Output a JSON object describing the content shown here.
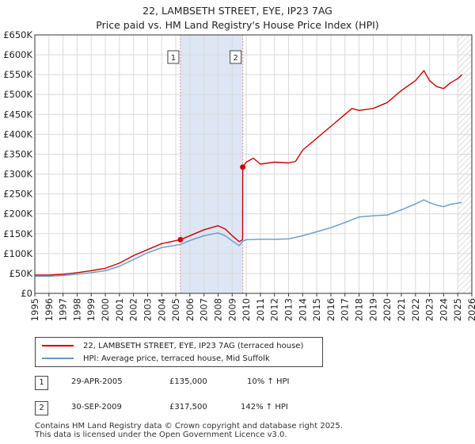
{
  "title_line1": "22, LAMBSETH STREET, EYE, IP23 7AG",
  "title_line2": "Price paid vs. HM Land Registry's House Price Index (HPI)",
  "legend": {
    "series1_label": "22, LAMBSETH STREET, EYE, IP23 7AG (terraced house)",
    "series2_label": "HPI: Average price, terraced house, Mid Suffolk"
  },
  "colors": {
    "property": "#cc0000",
    "hpi": "#6699cc",
    "shade": "#dde6f5",
    "marker_line": "#ee8888",
    "grid": "#d9d9d9"
  },
  "transactions": [
    {
      "num": "1",
      "date": "29-APR-2005",
      "price": "£135,000",
      "hpi_change": "10% ↑ HPI"
    },
    {
      "num": "2",
      "date": "30-SEP-2009",
      "price": "£317,500",
      "hpi_change": "142% ↑ HPI"
    }
  ],
  "footer_line1": "Contains HM Land Registry data © Crown copyright and database right 2025.",
  "footer_line2": "This data is licensed under the Open Government Licence v3.0.",
  "chart_data": {
    "type": "line",
    "title": "22, LAMBSETH STREET, EYE, IP23 7AG — Price paid vs. HM Land Registry's House Price Index (HPI)",
    "xlabel": "",
    "ylabel": "",
    "xlim": [
      1995,
      2026
    ],
    "ylim": [
      0,
      650000
    ],
    "y_ticks": [
      0,
      50000,
      100000,
      150000,
      200000,
      250000,
      300000,
      350000,
      400000,
      450000,
      500000,
      550000,
      600000,
      650000
    ],
    "y_tick_labels": [
      "£0",
      "£50K",
      "£100K",
      "£150K",
      "£200K",
      "£250K",
      "£300K",
      "£350K",
      "£400K",
      "£450K",
      "£500K",
      "£550K",
      "£600K",
      "£650K"
    ],
    "x_ticks": [
      1995,
      1996,
      1997,
      1998,
      1999,
      2000,
      2001,
      2002,
      2003,
      2004,
      2005,
      2006,
      2007,
      2008,
      2009,
      2010,
      2011,
      2012,
      2013,
      2014,
      2015,
      2016,
      2017,
      2018,
      2019,
      2020,
      2021,
      2022,
      2023,
      2024,
      2025,
      2026
    ],
    "x_tick_labels": [
      "1995",
      "1996",
      "1997",
      "1998",
      "1999",
      "2000",
      "2001",
      "2002",
      "2003",
      "2004",
      "2005",
      "2006",
      "2007",
      "2008",
      "2009",
      "2010",
      "2011",
      "2012",
      "2013",
      "2014",
      "2015",
      "2016",
      "2017",
      "2018",
      "2019",
      "2020",
      "2021",
      "2022",
      "2023",
      "2024",
      "2025",
      "2026"
    ],
    "grid": true,
    "shaded_region": [
      2005.33,
      2009.75
    ],
    "future_hatch_from": 2025.0,
    "sale_markers": [
      {
        "label": "1",
        "x": 2005.33,
        "y": 135000
      },
      {
        "label": "2",
        "x": 2009.75,
        "y": 317500
      }
    ],
    "series": [
      {
        "name": "22, LAMBSETH STREET, EYE, IP23 7AG (terraced house)",
        "x": [
          1995,
          1996,
          1997,
          1998,
          1999,
          2000,
          2001,
          2002,
          2003,
          2004,
          2005.33,
          2006,
          2007,
          2008,
          2008.5,
          2009,
          2009.5,
          2009.74,
          2009.75,
          2010,
          2010.5,
          2011,
          2012,
          2013,
          2013.5,
          2014,
          2015,
          2016,
          2017,
          2017.5,
          2018,
          2019,
          2020,
          2021,
          2022,
          2022.6,
          2023,
          2023.5,
          2024,
          2024.5,
          2025,
          2025.3
        ],
        "y": [
          46000,
          46000,
          48000,
          52000,
          57000,
          63000,
          76000,
          95000,
          110000,
          125000,
          135000,
          145000,
          160000,
          170000,
          162000,
          145000,
          130000,
          135000,
          317500,
          330000,
          340000,
          325000,
          330000,
          328000,
          332000,
          360000,
          390000,
          420000,
          450000,
          465000,
          460000,
          465000,
          480000,
          510000,
          535000,
          560000,
          535000,
          520000,
          515000,
          530000,
          540000,
          550000
        ]
      },
      {
        "name": "HPI: Average price, terraced house, Mid Suffolk",
        "x": [
          1995,
          1996,
          1997,
          1998,
          1999,
          2000,
          2001,
          2002,
          2003,
          2004,
          2005.33,
          2006,
          2007,
          2008,
          2008.5,
          2009,
          2009.5,
          2009.75,
          2010,
          2011,
          2012,
          2013,
          2014,
          2015,
          2016,
          2017,
          2018,
          2019,
          2020,
          2021,
          2022,
          2022.6,
          2023,
          2023.5,
          2024,
          2024.5,
          2025,
          2025.3
        ],
        "y": [
          43000,
          43000,
          45000,
          48000,
          52000,
          57000,
          68000,
          85000,
          102000,
          115000,
          123000,
          133000,
          145000,
          152000,
          145000,
          132000,
          120000,
          131000,
          135000,
          136000,
          136000,
          137000,
          145000,
          155000,
          165000,
          178000,
          192000,
          195000,
          197000,
          210000,
          225000,
          235000,
          228000,
          222000,
          218000,
          224000,
          227000,
          228000
        ]
      }
    ]
  }
}
